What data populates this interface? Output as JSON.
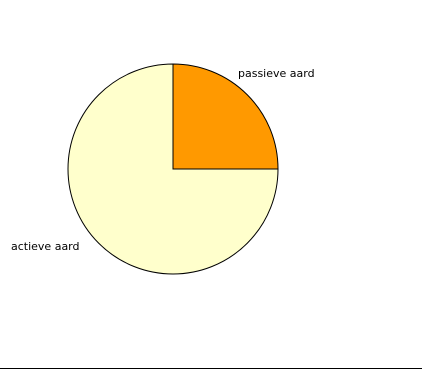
{
  "chart_data": {
    "type": "pie",
    "start_angle_deg": 0,
    "direction": "clockwise",
    "slices": [
      {
        "label": "passieve aard",
        "value": 25,
        "color": "#ff9900",
        "label_side": "right"
      },
      {
        "label": "actieve aard",
        "value": 75,
        "color": "#ffffcc",
        "label_side": "left"
      }
    ],
    "outline_color": "#000000",
    "legend": "none"
  }
}
